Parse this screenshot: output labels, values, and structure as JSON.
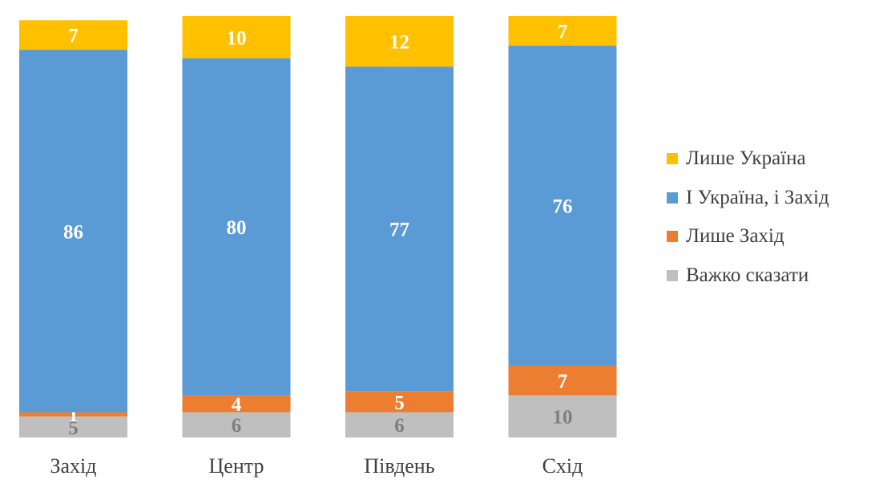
{
  "chart_data": {
    "type": "stacked_bar",
    "categories": [
      "Захід",
      "Центр",
      "Південь",
      "Схід"
    ],
    "series": [
      {
        "name": "Важко сказати",
        "color": "#bfbfbf",
        "label_color": "#7f7f7f",
        "label_bold": false,
        "values": [
          5,
          6,
          6,
          10
        ]
      },
      {
        "name": "Лише Захід",
        "color": "#ed7d31",
        "label_color": "#ffffff",
        "label_bold": true,
        "values": [
          1,
          4,
          5,
          7
        ]
      },
      {
        "name": "І Україна, і Захід",
        "color": "#5b9bd5",
        "label_color": "#ffffff",
        "label_bold": true,
        "values": [
          86,
          80,
          77,
          76
        ]
      },
      {
        "name": "Лише Україна",
        "color": "#ffc000",
        "label_color": "#ffffff",
        "label_bold": true,
        "values": [
          7,
          10,
          12,
          7
        ]
      }
    ],
    "legend_order": [
      "Лише Україна",
      "І Україна, і Захід",
      "Лише Захід",
      "Важко сказати"
    ],
    "legend_position": "right",
    "grid": false,
    "ylim": [
      0,
      100
    ]
  }
}
